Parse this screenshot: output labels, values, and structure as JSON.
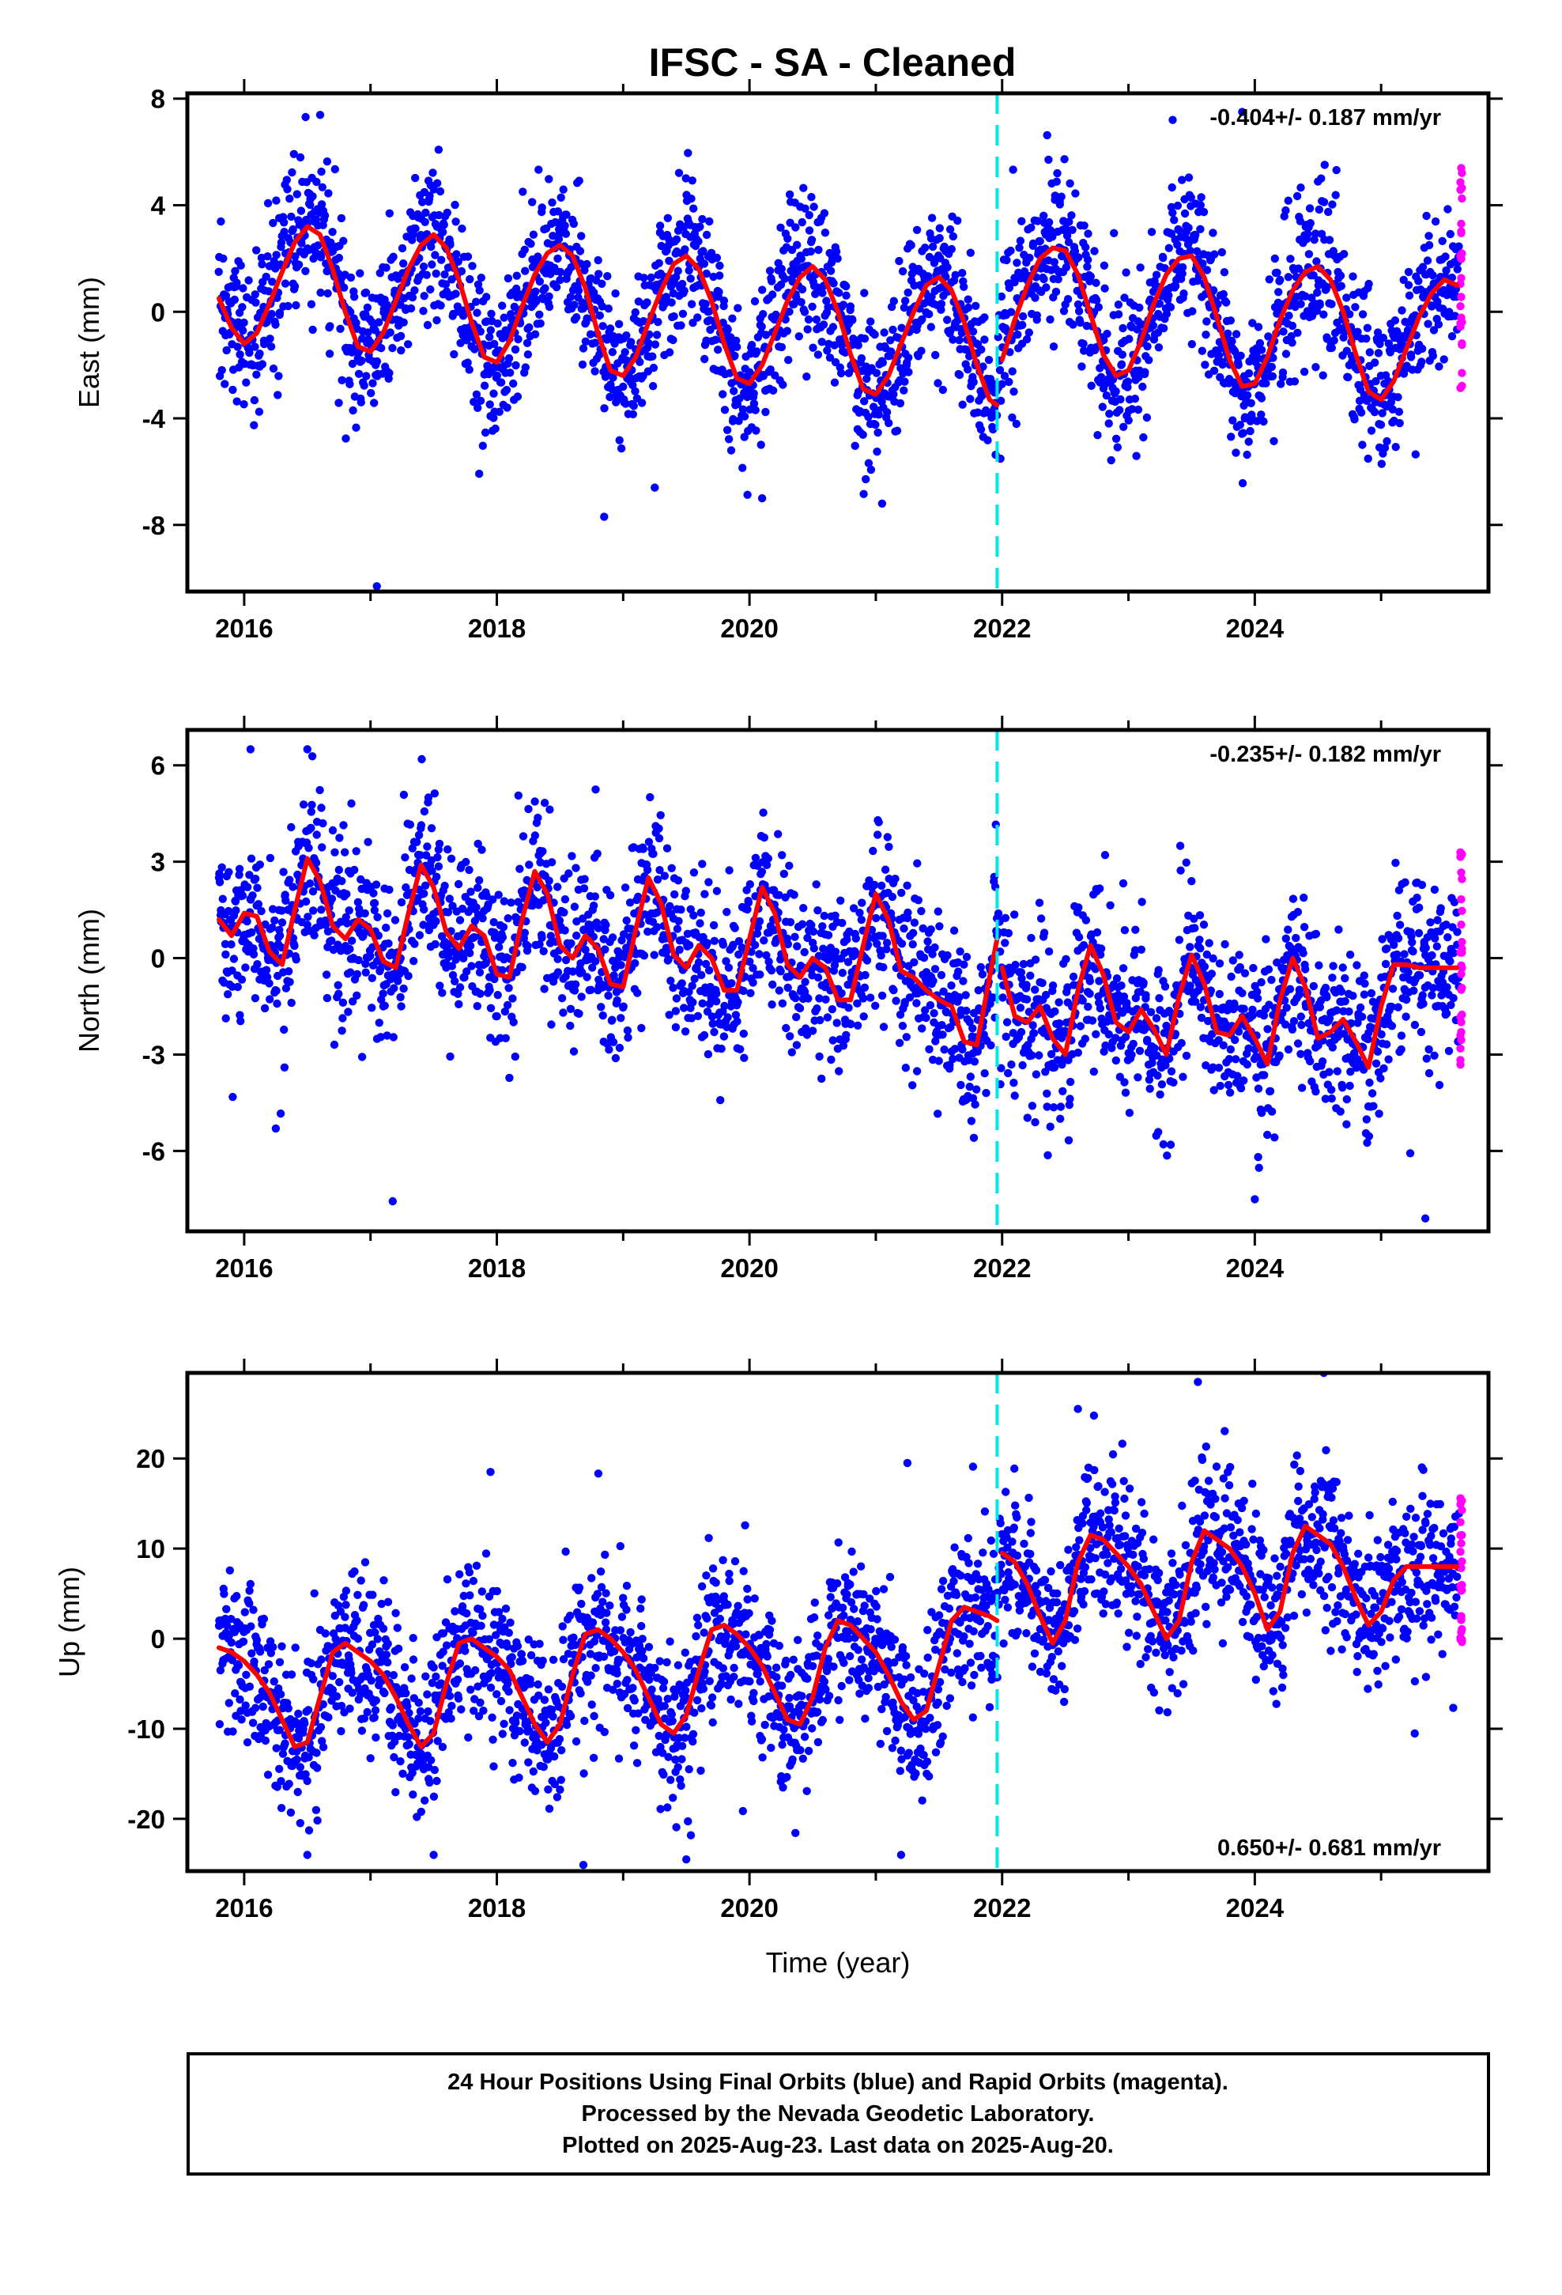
{
  "page": {
    "title": "IFSC  - SA - Cleaned",
    "xlabel": "Time (year)",
    "footer_lines": [
      "24 Hour Positions Using Final Orbits (blue) and Rapid Orbits (magenta).",
      "Processed by the Nevada Geodetic Laboratory.",
      "Plotted on 2025-Aug-23. Last data on 2025-Aug-20."
    ]
  },
  "colors": {
    "final_orbits": "#0000ff",
    "rapid_orbits": "#ff00ff",
    "model_fit": "#ff0000",
    "equipment_change": "#00e5ee",
    "frame": "#000000"
  },
  "chart_data": [
    {
      "type": "scatter",
      "component": "East",
      "ylabel": "East (mm)",
      "rate_label": "-0.404+/- 0.187 mm/yr",
      "rate_position": "top-right",
      "xlim": [
        2015.55,
        2025.85
      ],
      "ylim": [
        -10.5,
        8.2
      ],
      "xticks": [
        2016,
        2018,
        2020,
        2022,
        2024
      ],
      "xtick_labels": [
        "2016",
        "2018",
        "2020",
        "2022",
        "2024"
      ],
      "yticks": [
        -8,
        -4,
        0,
        4,
        8
      ],
      "ytick_labels": [
        "-8",
        "-4",
        "0",
        "4",
        "8"
      ],
      "equipment_change_epoch": 2021.96,
      "model": {
        "x": [
          2015.8,
          2015.9,
          2016.0,
          2016.1,
          2016.2,
          2016.3,
          2016.4,
          2016.5,
          2016.6,
          2016.7,
          2016.8,
          2016.9,
          2017.0,
          2017.1,
          2017.2,
          2017.3,
          2017.4,
          2017.5,
          2017.6,
          2017.7,
          2017.8,
          2017.9,
          2018.0,
          2018.1,
          2018.2,
          2018.3,
          2018.4,
          2018.5,
          2018.6,
          2018.7,
          2018.8,
          2018.9,
          2019.0,
          2019.1,
          2019.2,
          2019.3,
          2019.4,
          2019.5,
          2019.6,
          2019.7,
          2019.8,
          2019.9,
          2020.0,
          2020.1,
          2020.2,
          2020.3,
          2020.4,
          2020.5,
          2020.6,
          2020.7,
          2020.8,
          2020.9,
          2021.0,
          2021.1,
          2021.2,
          2021.3,
          2021.4,
          2021.5,
          2021.6,
          2021.7,
          2021.8,
          2021.9,
          2021.96,
          2022.0,
          2022.1,
          2022.2,
          2022.3,
          2022.4,
          2022.5,
          2022.6,
          2022.7,
          2022.8,
          2022.9,
          2023.0,
          2023.1,
          2023.2,
          2023.3,
          2023.4,
          2023.5,
          2023.6,
          2023.7,
          2023.8,
          2023.9,
          2024.0,
          2024.1,
          2024.2,
          2024.3,
          2024.4,
          2024.5,
          2024.6,
          2024.7,
          2024.8,
          2024.9,
          2025.0,
          2025.1,
          2025.2,
          2025.3,
          2025.4,
          2025.5,
          2025.6
        ],
        "y": [
          0.5,
          -0.6,
          -1.2,
          -0.8,
          0.3,
          1.5,
          2.6,
          3.2,
          2.9,
          1.6,
          0.0,
          -1.3,
          -1.5,
          -0.8,
          0.4,
          1.6,
          2.5,
          2.9,
          2.4,
          1.2,
          -0.4,
          -1.7,
          -1.9,
          -1.1,
          0.2,
          1.4,
          2.2,
          2.5,
          2.1,
          0.9,
          -0.8,
          -2.2,
          -2.4,
          -1.7,
          -0.4,
          0.8,
          1.8,
          2.1,
          1.6,
          0.4,
          -1.2,
          -2.5,
          -2.7,
          -2.0,
          -0.8,
          0.4,
          1.3,
          1.7,
          1.2,
          0.0,
          -1.6,
          -2.9,
          -3.1,
          -2.4,
          -1.2,
          0.0,
          1.0,
          1.3,
          0.8,
          -0.4,
          -2.0,
          -3.3,
          -3.5,
          -1.8,
          -0.3,
          1.0,
          2.0,
          2.4,
          2.3,
          1.4,
          -0.1,
          -1.6,
          -2.4,
          -2.2,
          -1.1,
          0.3,
          1.4,
          2.0,
          2.1,
          1.3,
          -0.2,
          -1.8,
          -2.8,
          -2.7,
          -1.7,
          -0.3,
          0.8,
          1.5,
          1.7,
          1.2,
          0.0,
          -1.6,
          -3.0,
          -3.3,
          -2.6,
          -1.4,
          -0.2,
          0.7,
          1.2,
          1.0
        ],
        "color": "#ff0000"
      },
      "scatter_params": {
        "n_final": 2600,
        "noise_mm": 1.45,
        "outliers": [
          [
            2017.05,
            -10.3
          ],
          [
            2019.25,
            -6.6
          ],
          [
            2020.1,
            -7.0
          ],
          [
            2021.05,
            -7.2
          ],
          [
            2023.9,
            7.5
          ],
          [
            2023.35,
            7.2
          ]
        ],
        "rapid_range": [
          2025.45,
          2025.64
        ],
        "rapid_spread": 4.4
      }
    },
    {
      "type": "scatter",
      "component": "North",
      "ylabel": "North (mm)",
      "rate_label": "-0.235+/- 0.182 mm/yr",
      "rate_position": "top-right",
      "xlim": [
        2015.55,
        2025.85
      ],
      "ylim": [
        -8.5,
        7.1
      ],
      "xticks": [
        2016,
        2018,
        2020,
        2022,
        2024
      ],
      "xtick_labels": [
        "2016",
        "2018",
        "2020",
        "2022",
        "2024"
      ],
      "yticks": [
        -6,
        -3,
        0,
        3,
        6
      ],
      "ytick_labels": [
        "-6",
        "-3",
        "0",
        "3",
        "6"
      ],
      "equipment_change_epoch": 2021.96,
      "model": {
        "x": [
          2015.8,
          2015.9,
          2016.0,
          2016.1,
          2016.2,
          2016.3,
          2016.4,
          2016.5,
          2016.6,
          2016.7,
          2016.8,
          2016.9,
          2017.0,
          2017.1,
          2017.2,
          2017.3,
          2017.4,
          2017.5,
          2017.6,
          2017.7,
          2017.8,
          2017.9,
          2018.0,
          2018.1,
          2018.2,
          2018.3,
          2018.4,
          2018.5,
          2018.6,
          2018.7,
          2018.8,
          2018.9,
          2019.0,
          2019.1,
          2019.2,
          2019.3,
          2019.4,
          2019.5,
          2019.6,
          2019.7,
          2019.8,
          2019.9,
          2020.0,
          2020.1,
          2020.2,
          2020.3,
          2020.4,
          2020.5,
          2020.6,
          2020.7,
          2020.8,
          2020.9,
          2021.0,
          2021.1,
          2021.2,
          2021.3,
          2021.4,
          2021.5,
          2021.6,
          2021.7,
          2021.8,
          2021.9,
          2021.96,
          2022.0,
          2022.1,
          2022.2,
          2022.3,
          2022.4,
          2022.5,
          2022.6,
          2022.7,
          2022.8,
          2022.9,
          2023.0,
          2023.1,
          2023.2,
          2023.3,
          2023.4,
          2023.5,
          2023.6,
          2023.7,
          2023.8,
          2023.9,
          2024.0,
          2024.1,
          2024.2,
          2024.3,
          2024.4,
          2024.5,
          2024.6,
          2024.7,
          2024.8,
          2024.9,
          2025.0,
          2025.1,
          2025.2,
          2025.3,
          2025.4,
          2025.5,
          2025.6
        ],
        "y": [
          1.2,
          0.7,
          1.4,
          1.3,
          0.2,
          -0.2,
          1.5,
          3.1,
          2.4,
          1.0,
          0.6,
          1.2,
          0.9,
          -0.1,
          -0.3,
          1.4,
          2.9,
          2.2,
          0.8,
          0.3,
          1.0,
          0.7,
          -0.5,
          -0.6,
          1.2,
          2.7,
          2.0,
          0.4,
          0.0,
          0.7,
          0.3,
          -0.8,
          -0.9,
          0.9,
          2.5,
          1.7,
          0.1,
          -0.3,
          0.4,
          0.0,
          -1.0,
          -1.0,
          0.6,
          2.2,
          1.4,
          -0.2,
          -0.6,
          0.0,
          -0.3,
          -1.3,
          -1.3,
          0.4,
          2.0,
          1.2,
          -0.4,
          -0.6,
          -1.0,
          -1.3,
          -1.5,
          -2.6,
          -2.7,
          -0.6,
          0.6,
          -0.3,
          -1.8,
          -2.0,
          -1.5,
          -2.5,
          -3.0,
          -1.0,
          0.4,
          -0.5,
          -2.0,
          -2.3,
          -1.6,
          -2.2,
          -3.0,
          -1.2,
          0.1,
          -0.8,
          -2.3,
          -2.4,
          -1.8,
          -2.5,
          -3.3,
          -1.3,
          0.0,
          -0.9,
          -2.5,
          -2.3,
          -1.9,
          -2.6,
          -3.4,
          -1.5,
          -0.2,
          -0.2,
          -0.3,
          -0.3,
          -0.3,
          -0.3
        ],
        "color": "#ff0000"
      },
      "scatter_params": {
        "n_final": 2600,
        "noise_mm": 1.3,
        "outliers": [
          [
            2016.05,
            6.5
          ],
          [
            2016.5,
            6.5
          ],
          [
            2016.25,
            -5.3
          ],
          [
            2025.35,
            -8.1
          ],
          [
            2024.0,
            -7.5
          ]
        ],
        "rapid_range": [
          2025.45,
          2025.64
        ],
        "rapid_spread": 3.8
      }
    },
    {
      "type": "scatter",
      "component": "Up",
      "ylabel": "Up (mm)",
      "rate_label": "0.650+/- 0.681 mm/yr",
      "rate_position": "bottom-right",
      "xlim": [
        2015.55,
        2025.85
      ],
      "ylim": [
        -25.8,
        29.5
      ],
      "xticks": [
        2016,
        2018,
        2020,
        2022,
        2024
      ],
      "xtick_labels": [
        "2016",
        "2018",
        "2020",
        "2022",
        "2024"
      ],
      "yticks": [
        -20,
        -10,
        0,
        10,
        20
      ],
      "ytick_labels": [
        "-20",
        "-10",
        "0",
        "10",
        "20"
      ],
      "equipment_change_epoch": 2021.96,
      "model": {
        "x": [
          2015.8,
          2015.9,
          2016.0,
          2016.1,
          2016.2,
          2016.3,
          2016.4,
          2016.5,
          2016.6,
          2016.7,
          2016.8,
          2016.9,
          2017.0,
          2017.1,
          2017.2,
          2017.3,
          2017.4,
          2017.5,
          2017.6,
          2017.7,
          2017.8,
          2017.9,
          2018.0,
          2018.1,
          2018.2,
          2018.3,
          2018.4,
          2018.5,
          2018.6,
          2018.7,
          2018.8,
          2018.9,
          2019.0,
          2019.1,
          2019.2,
          2019.3,
          2019.4,
          2019.5,
          2019.6,
          2019.7,
          2019.8,
          2019.9,
          2020.0,
          2020.1,
          2020.2,
          2020.3,
          2020.4,
          2020.5,
          2020.6,
          2020.7,
          2020.8,
          2020.9,
          2021.0,
          2021.1,
          2021.2,
          2021.3,
          2021.4,
          2021.5,
          2021.6,
          2021.7,
          2021.8,
          2021.9,
          2021.96,
          2022.0,
          2022.1,
          2022.2,
          2022.3,
          2022.4,
          2022.5,
          2022.6,
          2022.7,
          2022.8,
          2022.9,
          2023.0,
          2023.1,
          2023.2,
          2023.3,
          2023.4,
          2023.5,
          2023.6,
          2023.7,
          2023.8,
          2023.9,
          2024.0,
          2024.1,
          2024.2,
          2024.3,
          2024.4,
          2024.5,
          2024.6,
          2024.7,
          2024.8,
          2024.9,
          2025.0,
          2025.1,
          2025.2,
          2025.3,
          2025.4,
          2025.5,
          2025.6
        ],
        "y": [
          -1.0,
          -1.5,
          -2.5,
          -4.0,
          -6.0,
          -9.0,
          -12.0,
          -11.5,
          -6.5,
          -1.5,
          -0.5,
          -1.5,
          -2.5,
          -4.0,
          -6.5,
          -9.5,
          -12.0,
          -10.5,
          -5.0,
          -0.5,
          0.0,
          -1.0,
          -2.0,
          -3.5,
          -6.5,
          -9.5,
          -11.5,
          -9.5,
          -4.0,
          0.5,
          1.0,
          0.0,
          -1.5,
          -3.5,
          -6.5,
          -9.5,
          -10.5,
          -8.5,
          -3.5,
          1.0,
          1.5,
          0.5,
          -1.0,
          -3.0,
          -6.0,
          -9.0,
          -9.5,
          -6.5,
          -1.0,
          2.0,
          1.5,
          0.0,
          -1.5,
          -4.0,
          -7.0,
          -9.0,
          -8.0,
          -3.0,
          2.0,
          3.5,
          3.0,
          2.5,
          2.0,
          9.5,
          8.5,
          6.0,
          2.5,
          -0.5,
          2.0,
          8.5,
          11.5,
          11.0,
          9.5,
          8.0,
          6.0,
          3.0,
          0.0,
          2.0,
          8.5,
          12.0,
          11.0,
          10.0,
          8.0,
          5.0,
          1.0,
          3.0,
          9.5,
          12.5,
          11.5,
          10.5,
          8.0,
          4.5,
          1.5,
          3.0,
          6.5,
          8.0,
          8.0,
          8.0,
          8.0,
          8.0
        ],
        "color": "#ff0000"
      },
      "scatter_params": {
        "n_final": 2600,
        "noise_mm": 4.3,
        "outliers": [
          [
            2016.5,
            -24.0
          ],
          [
            2017.5,
            -24.0
          ],
          [
            2019.5,
            -24.5
          ],
          [
            2021.2,
            -24.0
          ],
          [
            2023.55,
            28.5
          ],
          [
            2022.6,
            25.5
          ],
          [
            2017.95,
            18.5
          ],
          [
            2021.25,
            19.5
          ]
        ],
        "rapid_range": [
          2025.45,
          2025.64
        ],
        "rapid_spread": 9.0
      }
    }
  ]
}
